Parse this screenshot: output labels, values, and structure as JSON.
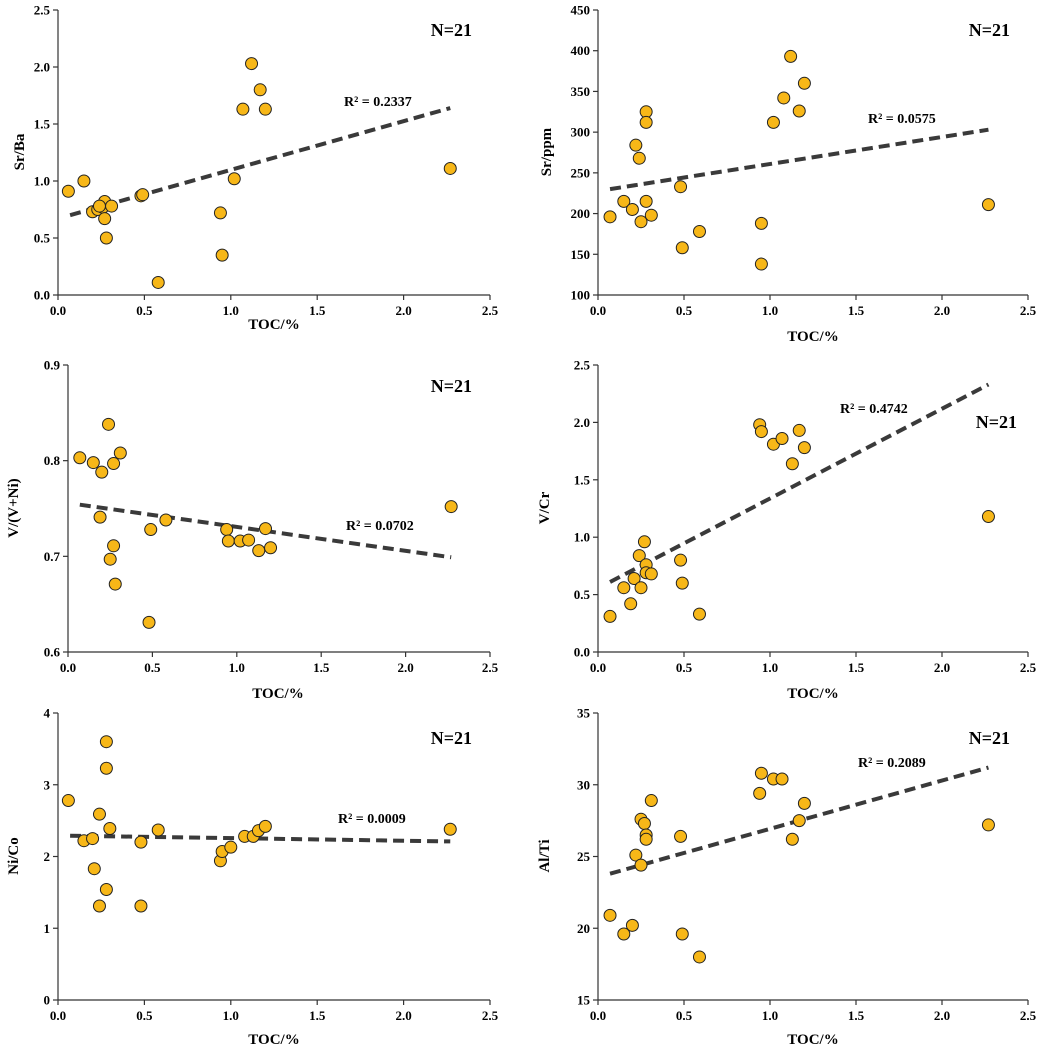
{
  "chart_data": [
    {
      "type": "scatter",
      "id": "sr-ba",
      "ylabel": "Sr/Ba",
      "xlabel": "TOC/%",
      "xlim": [
        0,
        2.5
      ],
      "ylim": [
        0,
        2.5
      ],
      "xticks": [
        "0.0",
        "0.5",
        "1.0",
        "1.5",
        "2.0",
        "2.5"
      ],
      "yticks": [
        "0.0",
        "0.5",
        "1.0",
        "1.5",
        "2.0",
        "2.5"
      ],
      "n_label": "N=21",
      "r2_label": "R² = 0.2337",
      "trendline": {
        "x": [
          0.07,
          2.27
        ],
        "y": [
          0.7,
          1.64
        ]
      },
      "x": [
        0.06,
        0.15,
        0.2,
        0.23,
        0.26,
        0.27,
        0.27,
        0.28,
        0.31,
        0.48,
        0.49,
        0.58,
        0.94,
        0.95,
        1.02,
        1.07,
        1.12,
        1.17,
        1.2,
        2.27,
        0.24
      ],
      "y": [
        0.91,
        1.0,
        0.73,
        0.75,
        0.77,
        0.82,
        0.67,
        0.5,
        0.78,
        0.87,
        0.88,
        0.11,
        0.72,
        0.35,
        1.02,
        1.63,
        2.03,
        1.8,
        1.63,
        1.11,
        0.78
      ]
    },
    {
      "type": "scatter",
      "id": "sr-ppm",
      "ylabel": "Sr/ppm",
      "xlabel": "TOC/%",
      "xlim": [
        0,
        2.5
      ],
      "ylim": [
        100,
        450
      ],
      "xticks": [
        "0.0",
        "0.5",
        "1.0",
        "1.5",
        "2.0",
        "2.5"
      ],
      "yticks": [
        "100",
        "150",
        "200",
        "250",
        "300",
        "350",
        "400",
        "450"
      ],
      "n_label": "N=21",
      "r2_label": "R² = 0.0575",
      "trendline": {
        "x": [
          0.07,
          2.27
        ],
        "y": [
          230,
          303
        ]
      },
      "x": [
        0.07,
        0.15,
        0.2,
        0.22,
        0.24,
        0.25,
        0.28,
        0.28,
        0.28,
        0.31,
        0.48,
        0.49,
        0.59,
        0.95,
        0.95,
        1.02,
        1.08,
        1.12,
        1.17,
        1.2,
        2.27
      ],
      "y": [
        196,
        215,
        205,
        284,
        268,
        190,
        325,
        312,
        215,
        198,
        233,
        158,
        178,
        188,
        138,
        312,
        342,
        393,
        326,
        360,
        211
      ]
    },
    {
      "type": "scatter",
      "id": "v-vni",
      "ylabel": "V/(V+Ni)",
      "xlabel": "TOC/%",
      "xlim": [
        0,
        2.5
      ],
      "ylim": [
        0.6,
        0.9
      ],
      "xticks": [
        "0.0",
        "0.5",
        "1.0",
        "1.5",
        "2.0",
        "2.5"
      ],
      "yticks": [
        "0.6",
        "0.7",
        "0.8",
        "0.9"
      ],
      "n_label": "N=21",
      "r2_label": "R² = 0.0702",
      "trendline": {
        "x": [
          0.07,
          2.27
        ],
        "y": [
          0.754,
          0.699
        ]
      },
      "x": [
        0.07,
        0.15,
        0.19,
        0.2,
        0.24,
        0.25,
        0.27,
        0.27,
        0.28,
        0.31,
        0.48,
        0.49,
        0.58,
        0.94,
        0.95,
        1.02,
        1.07,
        1.13,
        1.17,
        1.2,
        2.27
      ],
      "y": [
        0.803,
        0.798,
        0.741,
        0.788,
        0.838,
        0.697,
        0.797,
        0.711,
        0.671,
        0.808,
        0.631,
        0.728,
        0.738,
        0.728,
        0.716,
        0.716,
        0.717,
        0.706,
        0.729,
        0.709,
        0.752
      ]
    },
    {
      "type": "scatter",
      "id": "v-cr",
      "ylabel": "V/Cr",
      "xlabel": "TOC/%",
      "xlim": [
        0,
        2.5
      ],
      "ylim": [
        0,
        2.5
      ],
      "xticks": [
        "0.0",
        "0.5",
        "1.0",
        "1.5",
        "2.0",
        "2.5"
      ],
      "yticks": [
        "0.0",
        "0.5",
        "1.0",
        "1.5",
        "2.0",
        "2.5"
      ],
      "n_label": "N=21",
      "r2_label": "R² = 0.4742",
      "trendline": {
        "x": [
          0.07,
          2.27
        ],
        "y": [
          0.61,
          2.33
        ]
      },
      "x": [
        0.07,
        0.15,
        0.19,
        0.21,
        0.24,
        0.25,
        0.27,
        0.28,
        0.28,
        0.31,
        0.48,
        0.49,
        0.59,
        0.94,
        0.95,
        1.02,
        1.07,
        1.13,
        1.17,
        1.2,
        2.27
      ],
      "y": [
        0.31,
        0.56,
        0.42,
        0.64,
        0.84,
        0.56,
        0.96,
        0.76,
        0.69,
        0.68,
        0.8,
        0.6,
        0.33,
        1.98,
        1.92,
        1.81,
        1.86,
        1.64,
        1.93,
        1.78,
        1.18
      ]
    },
    {
      "type": "scatter",
      "id": "ni-co",
      "ylabel": "Ni/Co",
      "xlabel": "TOC/%",
      "xlim": [
        0,
        2.5
      ],
      "ylim": [
        0,
        4
      ],
      "xticks": [
        "0.0",
        "0.5",
        "1.0",
        "1.5",
        "2.0",
        "2.5"
      ],
      "yticks": [
        "0",
        "1",
        "2",
        "3",
        "4"
      ],
      "n_label": "N=21",
      "r2_label": "R² = 0.0009",
      "trendline": {
        "x": [
          0.07,
          2.27
        ],
        "y": [
          2.29,
          2.21
        ]
      },
      "x": [
        0.06,
        0.15,
        0.2,
        0.21,
        0.24,
        0.24,
        0.28,
        0.28,
        0.28,
        0.3,
        0.48,
        0.48,
        0.58,
        0.94,
        0.95,
        1.0,
        1.08,
        1.13,
        1.16,
        1.2,
        2.27
      ],
      "y": [
        2.78,
        2.22,
        2.25,
        1.83,
        2.59,
        1.31,
        3.6,
        3.23,
        1.54,
        2.39,
        1.31,
        2.2,
        2.37,
        1.94,
        2.07,
        2.13,
        2.28,
        2.28,
        2.36,
        2.42,
        2.38
      ]
    },
    {
      "type": "scatter",
      "id": "al-ti",
      "ylabel": "Al/Ti",
      "xlabel": "TOC/%",
      "xlim": [
        0,
        2.5
      ],
      "ylim": [
        15,
        35
      ],
      "xticks": [
        "0.0",
        "0.5",
        "1.0",
        "1.5",
        "2.0",
        "2.5"
      ],
      "yticks": [
        "15",
        "20",
        "25",
        "30",
        "35"
      ],
      "n_label": "N=21",
      "r2_label": "R² = 0.2089",
      "trendline": {
        "x": [
          0.07,
          2.27
        ],
        "y": [
          23.8,
          31.2
        ]
      },
      "x": [
        0.07,
        0.15,
        0.2,
        0.22,
        0.25,
        0.25,
        0.27,
        0.28,
        0.28,
        0.31,
        0.48,
        0.49,
        0.59,
        0.94,
        0.95,
        1.02,
        1.07,
        1.13,
        1.17,
        1.2,
        2.27
      ],
      "y": [
        20.9,
        19.6,
        20.2,
        25.1,
        27.6,
        24.4,
        27.3,
        26.5,
        26.2,
        28.9,
        26.4,
        19.6,
        18.0,
        29.4,
        30.8,
        30.4,
        30.4,
        26.2,
        27.5,
        28.7,
        27.2
      ]
    }
  ]
}
